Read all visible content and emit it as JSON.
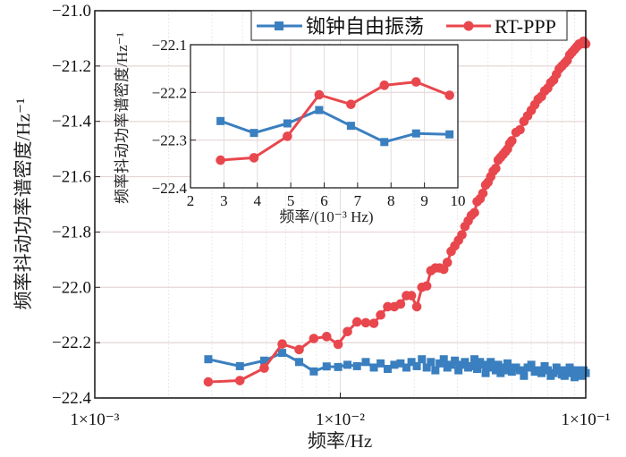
{
  "chart_data": [
    {
      "type": "line",
      "title": "",
      "xlabel": "频率/Hz",
      "ylabel": "频率抖动功率谱密度/Hz⁻¹",
      "xscale": "log",
      "xlim": [
        0.001,
        0.1
      ],
      "ylim": [
        -22.4,
        -21.0
      ],
      "xticks": [
        0.001,
        0.01,
        0.1
      ],
      "xtick_labels": [
        "1×10⁻³",
        "1×10⁻²",
        "1×10⁻¹"
      ],
      "yticks": [
        -21.0,
        -21.2,
        -21.4,
        -21.6,
        -21.8,
        -22.0,
        -22.2,
        -22.4
      ],
      "ytick_labels": [
        "−21.0",
        "−21.2",
        "−21.4",
        "−21.6",
        "−21.8",
        "−22.0",
        "−22.2",
        "−22.4"
      ],
      "grid": true,
      "legend": "top-right",
      "series": [
        {
          "name": "铷钟自由振荡",
          "color": "#3a7fbf",
          "marker": "square",
          "x": [
            0.0029,
            0.0039,
            0.0049,
            0.0058,
            0.0068,
            0.0078,
            0.0088,
            0.0098,
            0.0107,
            0.0117,
            0.0127,
            0.0137,
            0.0146,
            0.0156,
            0.0166,
            0.0176,
            0.0186,
            0.0195,
            0.0205,
            0.0215,
            0.0225,
            0.0234,
            0.0244,
            0.0254,
            0.0264,
            0.0273,
            0.0283,
            0.0293,
            0.0303,
            0.0313,
            0.0322,
            0.0332,
            0.0342,
            0.0352,
            0.0361,
            0.0371,
            0.0381,
            0.0391,
            0.04,
            0.041,
            0.042,
            0.043,
            0.044,
            0.045,
            0.046,
            0.047,
            0.048,
            0.049,
            0.05,
            0.052,
            0.054,
            0.056,
            0.058,
            0.06,
            0.062,
            0.064,
            0.066,
            0.068,
            0.07,
            0.072,
            0.074,
            0.076,
            0.078,
            0.08,
            0.082,
            0.084,
            0.086,
            0.088,
            0.09,
            0.092,
            0.094,
            0.096,
            0.098,
            0.1
          ],
          "y": [
            -22.26,
            -22.285,
            -22.265,
            -22.237,
            -22.27,
            -22.304,
            -22.286,
            -22.288,
            -22.28,
            -22.285,
            -22.27,
            -22.29,
            -22.275,
            -22.295,
            -22.28,
            -22.275,
            -22.29,
            -22.27,
            -22.285,
            -22.26,
            -22.29,
            -22.27,
            -22.3,
            -22.275,
            -22.26,
            -22.29,
            -22.28,
            -22.265,
            -22.3,
            -22.28,
            -22.27,
            -22.29,
            -22.285,
            -22.26,
            -22.295,
            -22.27,
            -22.28,
            -22.31,
            -22.285,
            -22.27,
            -22.29,
            -22.3,
            -22.28,
            -22.31,
            -22.29,
            -22.3,
            -22.275,
            -22.29,
            -22.305,
            -22.29,
            -22.3,
            -22.32,
            -22.29,
            -22.28,
            -22.305,
            -22.3,
            -22.31,
            -22.285,
            -22.3,
            -22.32,
            -22.31,
            -22.29,
            -22.3,
            -22.315,
            -22.32,
            -22.3,
            -22.29,
            -22.31,
            -22.325,
            -22.3,
            -22.31,
            -22.32,
            -22.3,
            -22.31
          ]
        },
        {
          "name": "RT-PPP",
          "color": "#e8474d",
          "marker": "circle",
          "x": [
            0.0029,
            0.0039,
            0.0049,
            0.0058,
            0.0068,
            0.0078,
            0.0088,
            0.0098,
            0.0107,
            0.0117,
            0.0127,
            0.0137,
            0.0146,
            0.0156,
            0.0166,
            0.0176,
            0.0186,
            0.0195,
            0.0205,
            0.0215,
            0.0225,
            0.0234,
            0.0244,
            0.0254,
            0.0264,
            0.0273,
            0.0283,
            0.0293,
            0.0303,
            0.0313,
            0.0322,
            0.0332,
            0.0342,
            0.0352,
            0.0361,
            0.0371,
            0.0381,
            0.0391,
            0.04,
            0.041,
            0.042,
            0.043,
            0.044,
            0.045,
            0.046,
            0.047,
            0.048,
            0.049,
            0.05,
            0.052,
            0.054,
            0.056,
            0.058,
            0.06,
            0.062,
            0.064,
            0.066,
            0.068,
            0.07,
            0.072,
            0.074,
            0.076,
            0.078,
            0.08,
            0.082,
            0.084,
            0.086,
            0.088,
            0.09,
            0.092,
            0.094,
            0.096,
            0.098,
            0.1
          ],
          "y": [
            -22.342,
            -22.337,
            -22.292,
            -22.205,
            -22.225,
            -22.185,
            -22.178,
            -22.206,
            -22.16,
            -22.125,
            -22.128,
            -22.13,
            -22.1,
            -22.07,
            -22.07,
            -22.06,
            -22.03,
            -22.03,
            -22.07,
            -22.0,
            -21.995,
            -21.94,
            -21.93,
            -21.93,
            -21.935,
            -21.91,
            -21.87,
            -21.85,
            -21.83,
            -21.81,
            -21.78,
            -21.76,
            -21.74,
            -21.73,
            -21.69,
            -21.68,
            -21.66,
            -21.63,
            -21.62,
            -21.6,
            -21.58,
            -21.57,
            -21.54,
            -21.53,
            -21.52,
            -21.51,
            -21.5,
            -21.48,
            -21.47,
            -21.44,
            -21.43,
            -21.4,
            -21.38,
            -21.36,
            -21.34,
            -21.32,
            -21.31,
            -21.29,
            -21.28,
            -21.26,
            -21.25,
            -21.23,
            -21.21,
            -21.2,
            -21.19,
            -21.18,
            -21.16,
            -21.15,
            -21.14,
            -21.13,
            -21.12,
            -21.12,
            -21.11,
            -21.12
          ]
        }
      ]
    },
    {
      "type": "line",
      "title": "inset",
      "xlabel": "频率/(10⁻³ Hz)",
      "ylabel": "频率抖动功率谱密度/Hz⁻¹",
      "xlim": [
        2,
        10
      ],
      "ylim": [
        -22.4,
        -22.1
      ],
      "xticks": [
        2,
        3,
        4,
        5,
        6,
        7,
        8,
        9,
        10
      ],
      "xtick_labels": [
        "2",
        "3",
        "4",
        "5",
        "6",
        "7",
        "8",
        "9",
        "10"
      ],
      "yticks": [
        -22.1,
        -22.2,
        -22.3,
        -22.4
      ],
      "ytick_labels": [
        "−22.1",
        "−22.2",
        "−22.3",
        "−22.4"
      ],
      "grid": true,
      "series": [
        {
          "name": "铷钟自由振荡",
          "color": "#3a7fbf",
          "marker": "square",
          "x": [
            2.9,
            3.9,
            4.9,
            5.85,
            6.8,
            7.8,
            8.75,
            9.75
          ],
          "y": [
            -22.26,
            -22.285,
            -22.265,
            -22.237,
            -22.27,
            -22.304,
            -22.286,
            -22.288
          ]
        },
        {
          "name": "RT-PPP",
          "color": "#e8474d",
          "marker": "circle",
          "x": [
            2.9,
            3.9,
            4.9,
            5.85,
            6.8,
            7.8,
            8.75,
            9.75
          ],
          "y": [
            -22.342,
            -22.337,
            -22.292,
            -22.205,
            -22.225,
            -22.185,
            -22.178,
            -22.206
          ]
        }
      ]
    }
  ],
  "legend": {
    "items": [
      {
        "label": "铷钟自由振荡",
        "color": "#3a7fbf",
        "marker": "square"
      },
      {
        "label": "RT-PPP",
        "color": "#e8474d",
        "marker": "circle"
      }
    ]
  }
}
